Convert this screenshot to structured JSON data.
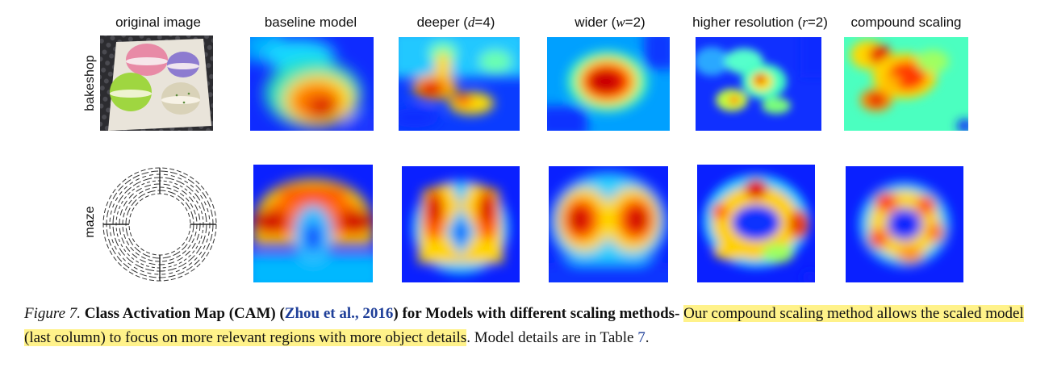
{
  "columns": [
    {
      "id": "original",
      "prefix": "original image",
      "var": "",
      "suffix": ""
    },
    {
      "id": "baseline",
      "prefix": "baseline model",
      "var": "",
      "suffix": ""
    },
    {
      "id": "deeper",
      "prefix": "deeper (",
      "var": "d",
      "suffix": "=4)"
    },
    {
      "id": "wider",
      "prefix": "wider (",
      "var": "w",
      "suffix": "=2)"
    },
    {
      "id": "higher-resolution",
      "prefix": "higher resolution (",
      "var": "r",
      "suffix": "=2)"
    },
    {
      "id": "compound",
      "prefix": "compound scaling",
      "var": "",
      "suffix": ""
    }
  ],
  "rows": [
    {
      "id": "bakeshop",
      "label": "bakeshop"
    },
    {
      "id": "maze",
      "label": "maze"
    }
  ],
  "caption": {
    "fig_label": "Figure 7.",
    "bold_title": "Class Activation Map (CAM)",
    "cite_open": "(",
    "cite_text": "Zhou et al., 2016",
    "cite_close": ")",
    "bold_rest": "for Models with different scaling methods-",
    "highlight": "Our compound scaling method allows the scaled model (last column) to focus on more relevant regions with more object details",
    "tail_prefix": ". Model details are in Table",
    "table_ref": "7",
    "tail_end": "."
  },
  "colors": {
    "colormap": "jet",
    "jet_low": "#0a14ff",
    "jet_high": "#c80000",
    "highlight": "#fff28a",
    "citation": "#1f3f99"
  }
}
